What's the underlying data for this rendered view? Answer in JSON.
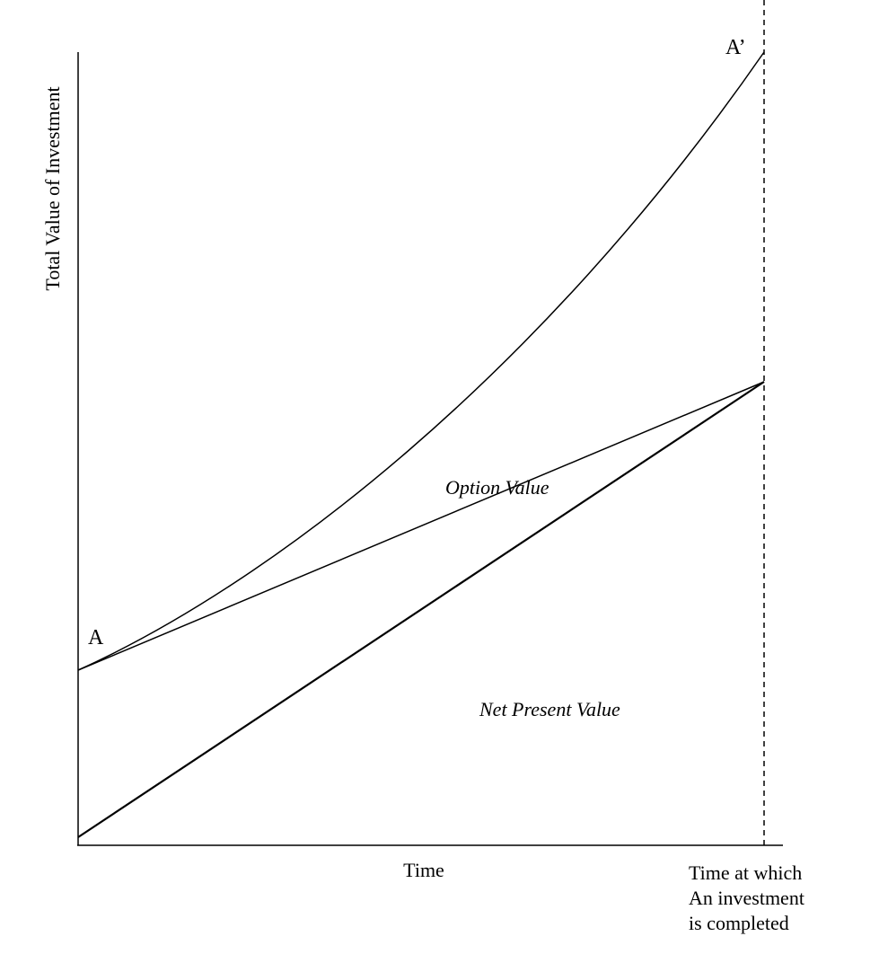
{
  "axes": {
    "y_label": "Total Value of Investment",
    "x_label": "Time"
  },
  "points": {
    "start": "A",
    "end": "A’"
  },
  "regions": {
    "upper": "Option Value",
    "lower": "Net Present Value"
  },
  "completion_label": {
    "lines": [
      "Time at which",
      "An investment",
      "is completed"
    ]
  }
}
